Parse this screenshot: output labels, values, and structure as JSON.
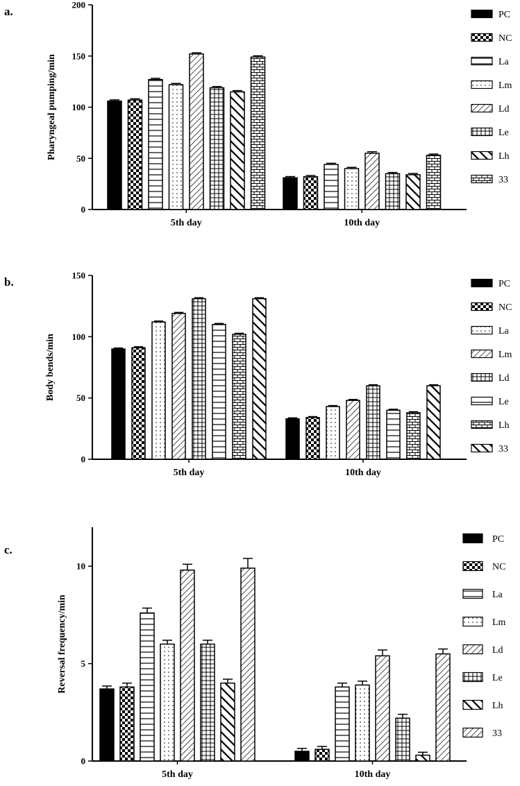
{
  "chart_data": [
    {
      "panel": "a.",
      "type": "bar",
      "ylabel": "Pharyngeal pumping/min",
      "xlabel": "",
      "categories": [
        "5th day",
        "10th day"
      ],
      "ylim": [
        0,
        200
      ],
      "yticks": [
        0,
        50,
        100,
        150,
        200
      ],
      "legend_position": "right",
      "series": [
        {
          "name": "PC",
          "pattern": "solid",
          "values": [
            106,
            31
          ],
          "errors": [
            1.2,
            1.2
          ]
        },
        {
          "name": "NC",
          "pattern": "checker",
          "values": [
            107,
            32
          ],
          "errors": [
            1.2,
            1.2
          ]
        },
        {
          "name": "La",
          "pattern": "hlines",
          "values": [
            127,
            44
          ],
          "errors": [
            1.2,
            1.2
          ]
        },
        {
          "name": "Lm",
          "pattern": "dots",
          "values": [
            122,
            40
          ],
          "errors": [
            1.2,
            1.2
          ]
        },
        {
          "name": "Ld",
          "pattern": "diag",
          "values": [
            152,
            55
          ],
          "errors": [
            1.2,
            1.5
          ]
        },
        {
          "name": "Le",
          "pattern": "grid",
          "values": [
            119,
            35
          ],
          "errors": [
            1.2,
            1.2
          ]
        },
        {
          "name": "Lh",
          "pattern": "thickdiag",
          "values": [
            115,
            34
          ],
          "errors": [
            1.2,
            1.2
          ]
        },
        {
          "name": "33",
          "pattern": "brick",
          "values": [
            149,
            53
          ],
          "errors": [
            1.2,
            1.2
          ]
        }
      ]
    },
    {
      "panel": "b.",
      "type": "bar",
      "ylabel": "Body bends/min",
      "xlabel": "",
      "categories": [
        "5th day",
        "10th day"
      ],
      "ylim": [
        0,
        150
      ],
      "yticks": [
        0,
        50,
        100,
        150
      ],
      "legend_position": "right",
      "series": [
        {
          "name": "PC",
          "pattern": "solid",
          "values": [
            90,
            33
          ],
          "errors": [
            0.8,
            0.8
          ]
        },
        {
          "name": "NC",
          "pattern": "checker",
          "values": [
            91,
            34
          ],
          "errors": [
            0.8,
            0.8
          ]
        },
        {
          "name": "La",
          "pattern": "dots",
          "values": [
            112,
            43
          ],
          "errors": [
            0.8,
            0.8
          ]
        },
        {
          "name": "Lm",
          "pattern": "diag",
          "values": [
            119,
            48
          ],
          "errors": [
            0.8,
            0.8
          ]
        },
        {
          "name": "Ld",
          "pattern": "grid",
          "values": [
            131,
            60
          ],
          "errors": [
            0.8,
            0.8
          ]
        },
        {
          "name": "Le",
          "pattern": "hlines",
          "values": [
            110,
            40
          ],
          "errors": [
            0.8,
            0.8
          ]
        },
        {
          "name": "Lh",
          "pattern": "brick",
          "values": [
            102,
            38
          ],
          "errors": [
            0.8,
            0.8
          ]
        },
        {
          "name": "33",
          "pattern": "thickdiag",
          "values": [
            131,
            60
          ],
          "errors": [
            0.8,
            0.8
          ]
        }
      ]
    },
    {
      "panel": "c.",
      "type": "bar",
      "ylabel": "Reversal frequency/min",
      "xlabel": "",
      "categories": [
        "5th day",
        "10th day"
      ],
      "ylim": [
        0,
        12
      ],
      "yticks": [
        0,
        5,
        10
      ],
      "legend_position": "right",
      "series": [
        {
          "name": "PC",
          "pattern": "solid",
          "values": [
            3.7,
            0.5
          ],
          "errors": [
            0.15,
            0.15
          ]
        },
        {
          "name": "NC",
          "pattern": "checker",
          "values": [
            3.8,
            0.6
          ],
          "errors": [
            0.2,
            0.15
          ]
        },
        {
          "name": "La",
          "pattern": "hlines",
          "values": [
            7.6,
            3.8
          ],
          "errors": [
            0.25,
            0.2
          ]
        },
        {
          "name": "Lm",
          "pattern": "dots",
          "values": [
            6.0,
            3.9
          ],
          "errors": [
            0.2,
            0.2
          ]
        },
        {
          "name": "Ld",
          "pattern": "diag",
          "values": [
            9.8,
            5.4
          ],
          "errors": [
            0.3,
            0.3
          ]
        },
        {
          "name": "Le",
          "pattern": "grid",
          "values": [
            6.0,
            2.2
          ],
          "errors": [
            0.2,
            0.2
          ]
        },
        {
          "name": "Lh",
          "pattern": "thickdiag",
          "values": [
            4.0,
            0.3
          ],
          "errors": [
            0.2,
            0.15
          ]
        },
        {
          "name": "33",
          "pattern": "diag",
          "values": [
            9.9,
            5.5
          ],
          "errors": [
            0.5,
            0.25
          ]
        }
      ]
    }
  ]
}
